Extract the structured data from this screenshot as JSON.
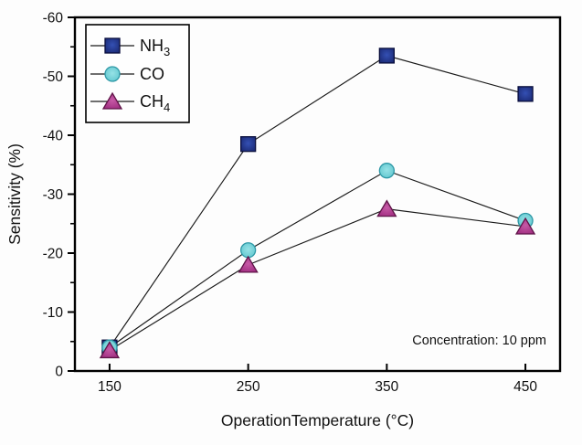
{
  "chart_data": {
    "type": "line",
    "x": [
      150,
      250,
      350,
      450
    ],
    "x_tick_labels": [
      "150",
      "250",
      "350",
      "450"
    ],
    "series": [
      {
        "name": "NH3",
        "legend_main": "NH",
        "legend_sub": "3",
        "marker": "square",
        "fill": "#1b2a75",
        "fill_light": "#3450b4",
        "stroke": "#0a0f3d",
        "values": [
          -4,
          -38.5,
          -53.5,
          -47
        ]
      },
      {
        "name": "CO",
        "legend_main": "CO",
        "legend_sub": "",
        "marker": "circle",
        "fill": "#5fc6ce",
        "fill_light": "#96e2e6",
        "stroke": "#2e98a6",
        "values": [
          -4,
          -20.5,
          -34,
          -25.5
        ]
      },
      {
        "name": "CH4",
        "legend_main": "CH",
        "legend_sub": "4",
        "marker": "triangle",
        "fill": "#a02c80",
        "fill_light": "#c65aa6",
        "stroke": "#5f1448",
        "values": [
          -3.5,
          -18,
          -27.5,
          -24.5
        ]
      }
    ],
    "xlabel": "OperationTemperature (°C)",
    "ylabel": "Sensitivity (%)",
    "xlim": [
      125,
      475
    ],
    "ylim": [
      0,
      -60
    ],
    "y_ticks": [
      0,
      -10,
      -20,
      -30,
      -40,
      -50,
      -60
    ],
    "y_tick_labels": [
      "0",
      "-10",
      "-20",
      "-30",
      "-40",
      "-50",
      "-60"
    ],
    "y_minor_step": 5,
    "annotation": "Concentration: 10 ppm",
    "legend_position": "top-left",
    "grid": false,
    "line_color": "#1a1a1a",
    "axis_color": "#000000"
  }
}
